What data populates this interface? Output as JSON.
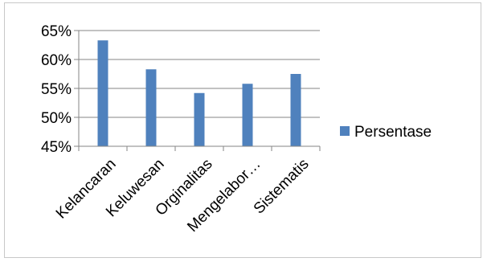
{
  "chart_data": {
    "type": "bar",
    "categories": [
      "Kelancaran",
      "Keluwesan",
      "Orginalitas",
      "Mengelabor…",
      "Sistematis"
    ],
    "series": [
      {
        "name": "Persentase",
        "values": [
          63.3,
          58.3,
          54.2,
          55.8,
          57.5
        ],
        "color": "#4f81bd"
      }
    ],
    "ylim": [
      45,
      65
    ],
    "yticks": [
      45,
      50,
      55,
      60,
      65
    ],
    "ytick_labels": [
      "45%",
      "50%",
      "55%",
      "60%",
      "65%"
    ],
    "grid": true,
    "legend_position": "right",
    "title": "",
    "xlabel": "",
    "ylabel": ""
  }
}
